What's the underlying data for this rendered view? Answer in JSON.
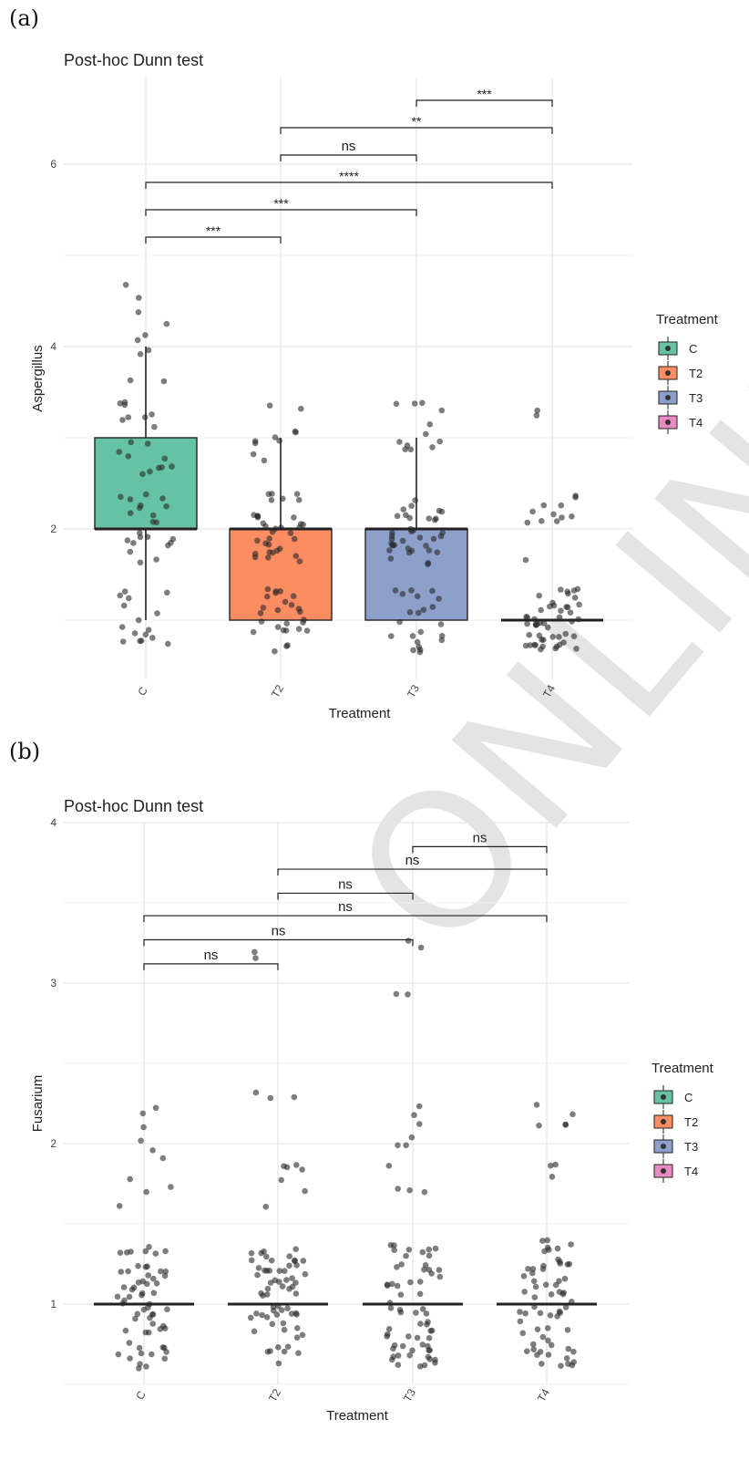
{
  "panel_labels": [
    "(a)",
    "(b)"
  ],
  "watermark": "ONLINE FIRST",
  "chart_data": [
    {
      "type": "box",
      "title": "Post-hoc Dunn test",
      "xlabel": "Treatment",
      "ylabel": "Aspergillus",
      "categories": [
        "C",
        "T2",
        "T3",
        "T4"
      ],
      "yticks": [
        2,
        4,
        6
      ],
      "ylim": [
        0.35,
        6.95
      ],
      "grid": true,
      "colors": [
        "#66c2a5",
        "#fc8d62",
        "#8da0cb",
        "#e78ac3"
      ],
      "legend": {
        "title": "Treatment",
        "entries": [
          "C",
          "T2",
          "T3",
          "T4"
        ],
        "position": "right"
      },
      "boxes": [
        {
          "category": "C",
          "min": 1,
          "q1": 2,
          "median": 2,
          "q3": 3,
          "max": 4
        },
        {
          "category": "T2",
          "min": 1,
          "q1": 1,
          "median": 2,
          "q3": 2,
          "max": 3
        },
        {
          "category": "T3",
          "min": 1,
          "q1": 1,
          "median": 2,
          "q3": 2,
          "max": 3
        },
        {
          "category": "T4",
          "min": 1,
          "q1": 1,
          "median": 1,
          "q3": 1,
          "max": 1
        }
      ],
      "outliers": [
        {
          "category": "T2",
          "values": [
            4
          ]
        },
        {
          "category": "T4",
          "values": [
            2,
            3
          ]
        }
      ],
      "comparisons": [
        {
          "from": "C",
          "to": "T2",
          "y": 5.2,
          "label": "***"
        },
        {
          "from": "C",
          "to": "T3",
          "y": 5.5,
          "label": "***"
        },
        {
          "from": "C",
          "to": "T4",
          "y": 5.8,
          "label": "****"
        },
        {
          "from": "T2",
          "to": "T3",
          "y": 6.1,
          "label": "ns"
        },
        {
          "from": "T2",
          "to": "T4",
          "y": 6.4,
          "label": "**"
        },
        {
          "from": "T3",
          "to": "T4",
          "y": 6.7,
          "label": "***"
        }
      ]
    },
    {
      "type": "box",
      "title": "Post-hoc Dunn test",
      "xlabel": "Treatment",
      "ylabel": "Fusarium",
      "categories": [
        "C",
        "T2",
        "T3",
        "T4"
      ],
      "yticks": [
        1,
        2,
        3,
        4
      ],
      "ylim": [
        0.5,
        4
      ],
      "grid": true,
      "colors": [
        "#66c2a5",
        "#fc8d62",
        "#8da0cb",
        "#e78ac3"
      ],
      "legend": {
        "title": "Treatment",
        "entries": [
          "C",
          "T2",
          "T3",
          "T4"
        ],
        "position": "right"
      },
      "boxes": [
        {
          "category": "C",
          "min": 1,
          "q1": 1,
          "median": 1,
          "q3": 1,
          "max": 1
        },
        {
          "category": "T2",
          "min": 1,
          "q1": 1,
          "median": 1,
          "q3": 1,
          "max": 1
        },
        {
          "category": "T3",
          "min": 1,
          "q1": 1,
          "median": 1,
          "q3": 1,
          "max": 1
        },
        {
          "category": "T4",
          "min": 1,
          "q1": 1,
          "median": 1,
          "q3": 1,
          "max": 1
        }
      ],
      "outliers": [
        {
          "category": "C",
          "values": [
            2
          ]
        },
        {
          "category": "T2",
          "values": [
            2,
            3
          ]
        },
        {
          "category": "T3",
          "values": [
            2,
            3
          ]
        },
        {
          "category": "T4",
          "values": [
            2
          ]
        }
      ],
      "comparisons": [
        {
          "from": "C",
          "to": "T2",
          "y": 3.12,
          "label": "ns"
        },
        {
          "from": "C",
          "to": "T3",
          "y": 3.27,
          "label": "ns"
        },
        {
          "from": "C",
          "to": "T4",
          "y": 3.42,
          "label": "ns"
        },
        {
          "from": "T2",
          "to": "T3",
          "y": 3.56,
          "label": "ns"
        },
        {
          "from": "T2",
          "to": "T4",
          "y": 3.71,
          "label": "ns"
        },
        {
          "from": "T3",
          "to": "T4",
          "y": 3.85,
          "label": "ns"
        }
      ]
    }
  ]
}
